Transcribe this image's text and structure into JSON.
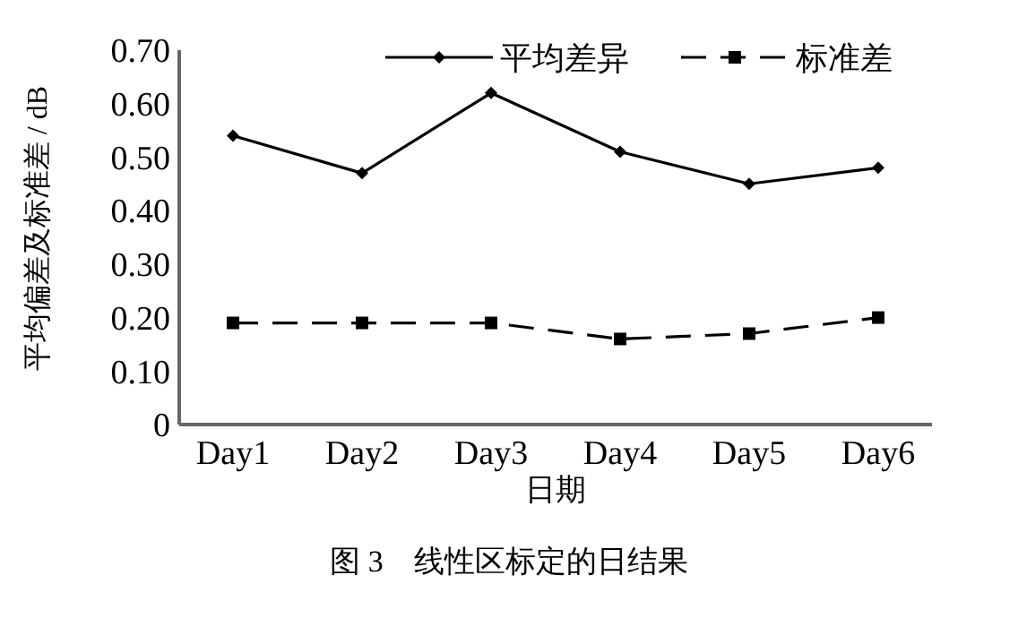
{
  "chart_data": {
    "type": "line",
    "title": "图 3　线性区标定的日结果",
    "xlabel": "日期",
    "ylabel": "平均偏差及标准差 / dB",
    "categories": [
      "Day1",
      "Day2",
      "Day3",
      "Day4",
      "Day5",
      "Day6"
    ],
    "series": [
      {
        "name": "平均差异",
        "color": "#000000",
        "marker": "diamond",
        "line_style": "solid",
        "values": [
          0.54,
          0.47,
          0.62,
          0.51,
          0.45,
          0.48
        ]
      },
      {
        "name": "标准差",
        "color": "#000000",
        "marker": "square",
        "line_style": "dashed",
        "values": [
          0.19,
          0.19,
          0.19,
          0.16,
          0.17,
          0.2
        ]
      }
    ],
    "ylim": [
      0,
      0.7
    ],
    "yticks": [
      {
        "value": 0,
        "label": "0"
      },
      {
        "value": 0.1,
        "label": "0.10"
      },
      {
        "value": 0.2,
        "label": "0.20"
      },
      {
        "value": 0.3,
        "label": "0.30"
      },
      {
        "value": 0.4,
        "label": "0.40"
      },
      {
        "value": 0.5,
        "label": "0.50"
      },
      {
        "value": 0.6,
        "label": "0.60"
      },
      {
        "value": 0.7,
        "label": "0.70"
      }
    ],
    "grid": false,
    "legend": "top right"
  }
}
